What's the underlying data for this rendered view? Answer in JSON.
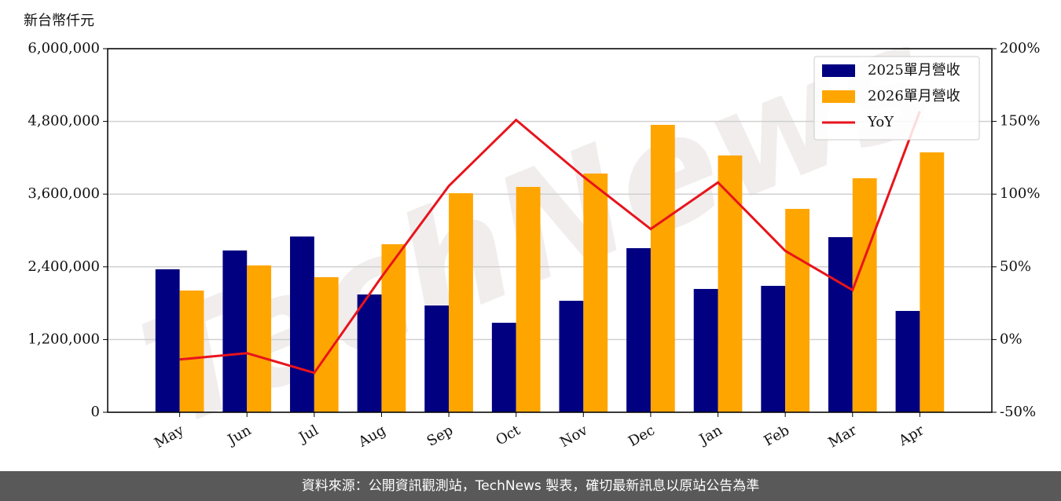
{
  "chart_data": {
    "type": "bar_line",
    "y_unit_label": "新台幣仟元",
    "watermark": "TechNews",
    "categories": [
      "May",
      "Jun",
      "Jul",
      "Aug",
      "Sep",
      "Oct",
      "Nov",
      "Dec",
      "Jan",
      "Feb",
      "Mar",
      "Apr"
    ],
    "series": [
      {
        "name": "2025單月營收",
        "type": "bar",
        "color": "#000080",
        "values": [
          2360000,
          2670000,
          2900000,
          1944000,
          1762000,
          1477000,
          1840000,
          2708000,
          2035000,
          2086000,
          2890000,
          1672000
        ]
      },
      {
        "name": "2026單月營收",
        "type": "bar",
        "color": "#ffa500",
        "values": [
          2009000,
          2423000,
          2229000,
          2773000,
          3615000,
          3719000,
          3940000,
          4743000,
          4238000,
          3356000,
          3862000,
          4289000
        ]
      },
      {
        "name": "YoY",
        "type": "line",
        "axis": "y2",
        "color": "#e8141c",
        "values": [
          -13.7,
          -9.4,
          -22.9,
          43,
          105.6,
          151,
          112,
          76,
          108,
          61,
          34,
          157
        ]
      }
    ],
    "ylim": [
      0,
      6000000
    ],
    "yticks": [
      0,
      {
        "value": 1200000,
        "label": "1,200,000"
      },
      {
        "value": 2400000,
        "label": "2,400,000"
      },
      {
        "value": 3600000,
        "label": "3,600,000"
      },
      {
        "value": 4800000,
        "label": "4,800,000"
      },
      {
        "value": 6000000,
        "label": "6,000,000"
      }
    ],
    "y2lim": [
      -50,
      200
    ],
    "y2ticks": [
      {
        "value": -50,
        "label": "-50%"
      },
      {
        "value": 0,
        "label": "0%"
      },
      {
        "value": 50,
        "label": "50%"
      },
      {
        "value": 100,
        "label": "100%"
      },
      {
        "value": 150,
        "label": "150%"
      },
      {
        "value": 200,
        "label": "200%"
      }
    ],
    "grid": true,
    "legend": "upper right",
    "footer": "資料來源：公開資訊觀測站，TechNews 製表，確切最新訊息以原站公告為準"
  }
}
